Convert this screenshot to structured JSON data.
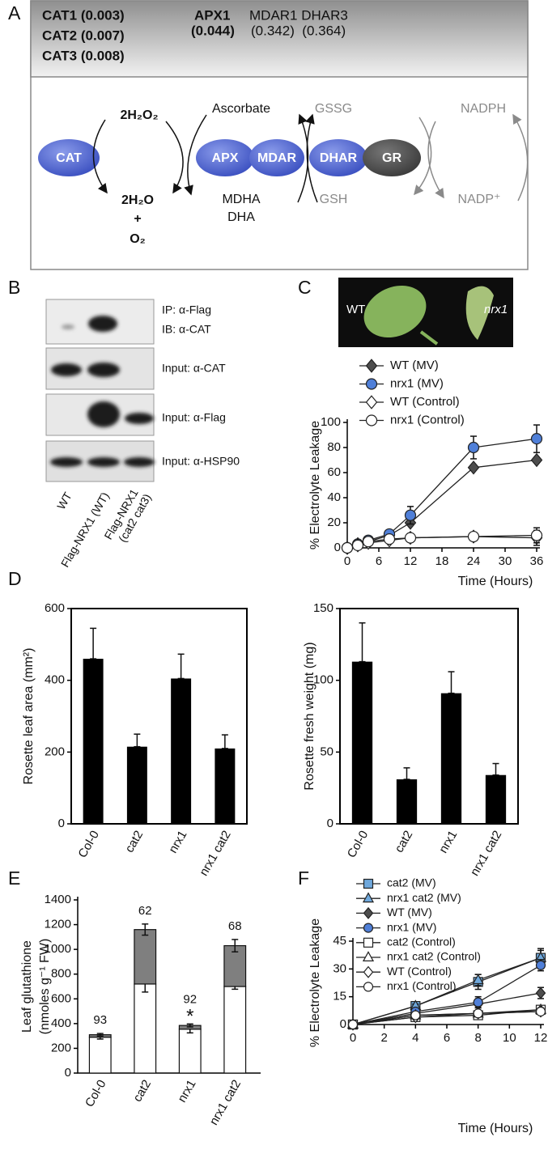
{
  "panels": [
    "A",
    "B",
    "C",
    "D",
    "E",
    "F"
  ],
  "diagram": {
    "cat_genes": [
      "CAT1 (0.003)",
      "CAT2 (0.007)",
      "CAT3 (0.008)"
    ],
    "apx_gene": "APX1",
    "apx_value": "(0.044)",
    "other_genes": "MDAR1 DHAR3",
    "other_values": "(0.342)  (0.364)",
    "enzymes": [
      "CAT",
      "APX",
      "MDAR",
      "DHAR",
      "GR"
    ],
    "metabolites": {
      "h2o2": "2H₂O₂",
      "ascorbate": "Ascorbate",
      "gssg": "GSSG",
      "nadph": "NADPH",
      "water": "2H₂O",
      "plus": "+",
      "oxygen": "O₂",
      "mdha": "MDHA",
      "dha": "DHA",
      "gsh": "GSH",
      "nadp": "NADP⁺"
    }
  },
  "blot": {
    "row_labels": [
      "IP: α-Flag",
      "IB: α-CAT",
      "Input: α-CAT",
      "Input: α-Flag",
      "Input: α-HSP90"
    ],
    "lanes": [
      [
        "WT"
      ],
      [
        "Flag-NRX1 (WT)"
      ],
      [
        "Flag-NRX1",
        "(cat2 cat3)"
      ]
    ]
  },
  "photo": {
    "labels": [
      "WT",
      "nrx1"
    ]
  },
  "chart_data": [
    {
      "type": "line",
      "x": [
        0,
        2,
        4,
        8,
        12,
        24,
        36
      ],
      "xlim": [
        0,
        36
      ],
      "xticks": [
        0,
        6,
        12,
        18,
        24,
        30,
        36
      ],
      "ylim": [
        0,
        100
      ],
      "yticks": [
        0,
        20,
        40,
        60,
        80,
        100
      ],
      "ylabel": "% Electrolyte Leakage",
      "xlabel": "Time (Hours)",
      "series": [
        {
          "name": "WT (MV)",
          "color": "#4d4d4d",
          "marker": "diamond",
          "values": [
            0,
            3,
            5,
            10,
            20,
            64,
            70
          ],
          "errors": [
            0,
            0,
            0,
            1,
            2,
            2,
            2
          ]
        },
        {
          "name": "nrx1 (MV)",
          "color": "#4f7fd8",
          "marker": "circle",
          "values": [
            0,
            3,
            6,
            11,
            26,
            80,
            87
          ],
          "errors": [
            0,
            0,
            1,
            1,
            7,
            9,
            11
          ]
        },
        {
          "name": "WT (Control)",
          "color": "#ffffff",
          "marker": "diamond",
          "values": [
            0,
            2,
            4,
            6,
            8,
            9,
            8
          ],
          "errors": [
            0,
            0,
            0,
            0,
            0,
            2,
            6
          ]
        },
        {
          "name": "nrx1 (Control)",
          "color": "#ffffff",
          "marker": "circle",
          "values": [
            0,
            2,
            5,
            7,
            8,
            9,
            10
          ],
          "errors": [
            0,
            0,
            0,
            0,
            1,
            2,
            6
          ]
        }
      ]
    },
    {
      "type": "bar",
      "categories": [
        "Col-0",
        "cat2",
        "nrx1",
        "nrx1 cat2"
      ],
      "values": [
        460,
        215,
        405,
        210
      ],
      "errors": [
        85,
        35,
        68,
        38
      ],
      "color": "#000000",
      "ylim": [
        0,
        600
      ],
      "yticks": [
        0,
        200,
        400,
        600
      ],
      "ylabel": "Rosette leaf area (mm²)"
    },
    {
      "type": "bar",
      "categories": [
        "Col-0",
        "cat2",
        "nrx1",
        "nrx1 cat2"
      ],
      "values": [
        113,
        31,
        91,
        34
      ],
      "errors": [
        27,
        8,
        15,
        8
      ],
      "color": "#000000",
      "ylim": [
        0,
        150
      ],
      "yticks": [
        0,
        50,
        100,
        150
      ],
      "ylabel": "Rosette fresh weight (mg)"
    },
    {
      "type": "stacked_bar",
      "categories": [
        "Col-0",
        "cat2",
        "nrx1",
        "nrx1 cat2"
      ],
      "series": [
        {
          "color": "#ffffff",
          "values": [
            290,
            720,
            355,
            700
          ],
          "errors": [
            15,
            65,
            30,
            22
          ]
        },
        {
          "color": "#7f7f7f",
          "values": [
            20,
            440,
            30,
            330
          ],
          "errors": [
            10,
            45,
            12,
            50
          ]
        }
      ],
      "bar_labels": [
        93,
        62,
        92,
        68
      ],
      "significance": [
        null,
        null,
        "*",
        null
      ],
      "ylim": [
        0,
        1400
      ],
      "yticks": [
        0,
        200,
        400,
        600,
        800,
        1000,
        1200,
        1400
      ],
      "ylabel": [
        "Leaf glutathione",
        "(nmoles g⁻¹ FW)"
      ]
    },
    {
      "type": "line",
      "x": [
        0,
        4,
        8,
        12
      ],
      "xlim": [
        0,
        12
      ],
      "xticks": [
        0,
        2,
        4,
        6,
        8,
        10,
        12
      ],
      "ylim": [
        0,
        45
      ],
      "yticks": [
        0,
        15,
        30,
        45
      ],
      "ylabel": "% Electrolyte Leakage",
      "xlabel": "Time (Hours)",
      "series": [
        {
          "name": "cat2 (MV)",
          "color": "#6fa8dc",
          "marker": "square",
          "values": [
            0,
            10,
            23,
            36
          ],
          "errors": [
            0,
            1,
            4,
            5
          ]
        },
        {
          "name": "nrx1 cat2 (MV)",
          "color": "#6fa8dc",
          "marker": "triangle",
          "values": [
            0,
            10,
            24,
            36
          ],
          "errors": [
            0,
            1,
            3,
            4
          ]
        },
        {
          "name": "WT (MV)",
          "color": "#4d4d4d",
          "marker": "diamond",
          "values": [
            0,
            6,
            11,
            17
          ],
          "errors": [
            0,
            1,
            2,
            3
          ]
        },
        {
          "name": "nrx1 (MV)",
          "color": "#4f7fd8",
          "marker": "circle",
          "values": [
            0,
            7,
            12,
            32
          ],
          "errors": [
            0,
            1,
            3,
            3
          ]
        },
        {
          "name": "cat2 (Control)",
          "color": "#ffffff",
          "marker": "square",
          "values": [
            0,
            4,
            5,
            8
          ],
          "errors": [
            0,
            1,
            1,
            1
          ]
        },
        {
          "name": "nrx1 cat2 (Control)",
          "color": "#ffffff",
          "marker": "triangle",
          "values": [
            0,
            5,
            6,
            8
          ],
          "errors": [
            0,
            1,
            1,
            1
          ]
        },
        {
          "name": "WT (Control)",
          "color": "#ffffff",
          "marker": "diamond",
          "values": [
            0,
            4,
            6,
            7
          ],
          "errors": [
            0,
            1,
            1,
            1
          ]
        },
        {
          "name": "nrx1 (Control)",
          "color": "#ffffff",
          "marker": "circle",
          "values": [
            0,
            5,
            6,
            7
          ],
          "errors": [
            0,
            1,
            1,
            1
          ]
        }
      ]
    }
  ]
}
